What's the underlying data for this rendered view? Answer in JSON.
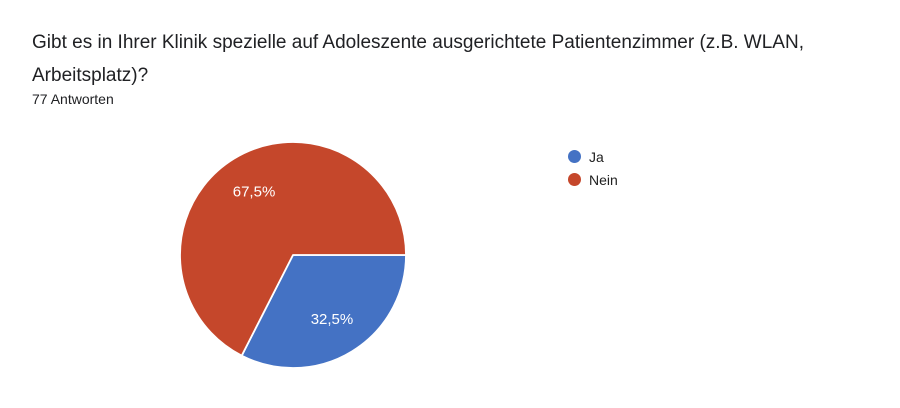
{
  "header": {
    "title": "Gibt es in Ihrer Klinik spezielle auf Adoleszente ausgerichtete Patientenzimmer (z.B. WLAN, Arbeitsplatz)?",
    "title_lines": [
      "Gibt es in Ihrer Klinik spezielle auf Adoleszente ausgerichtete Patientenzimmer (z.B. WLAN,",
      "Arbeitsplatz)?"
    ],
    "response_count": "77 Antworten"
  },
  "legend": {
    "items": [
      {
        "label": "Ja",
        "color": "#4472C4"
      },
      {
        "label": "Nein",
        "color": "#C5472B"
      }
    ]
  },
  "chart_data": {
    "type": "pie",
    "title": "Gibt es in Ihrer Klinik spezielle auf Adoleszente ausgerichtete Patientenzimmer (z.B. WLAN, Arbeitsplatz)?",
    "subtitle": "77 Antworten",
    "categories": [
      "Ja",
      "Nein"
    ],
    "values": [
      32.5,
      67.5
    ],
    "slice_labels": [
      "32,5%",
      "67,5%"
    ],
    "colors": [
      "#4472C4",
      "#C5472B"
    ],
    "label_color": "#ffffff",
    "start_angle_deg": 0,
    "direction": "clockwise",
    "legend_position": "right",
    "total_responses": 77
  }
}
